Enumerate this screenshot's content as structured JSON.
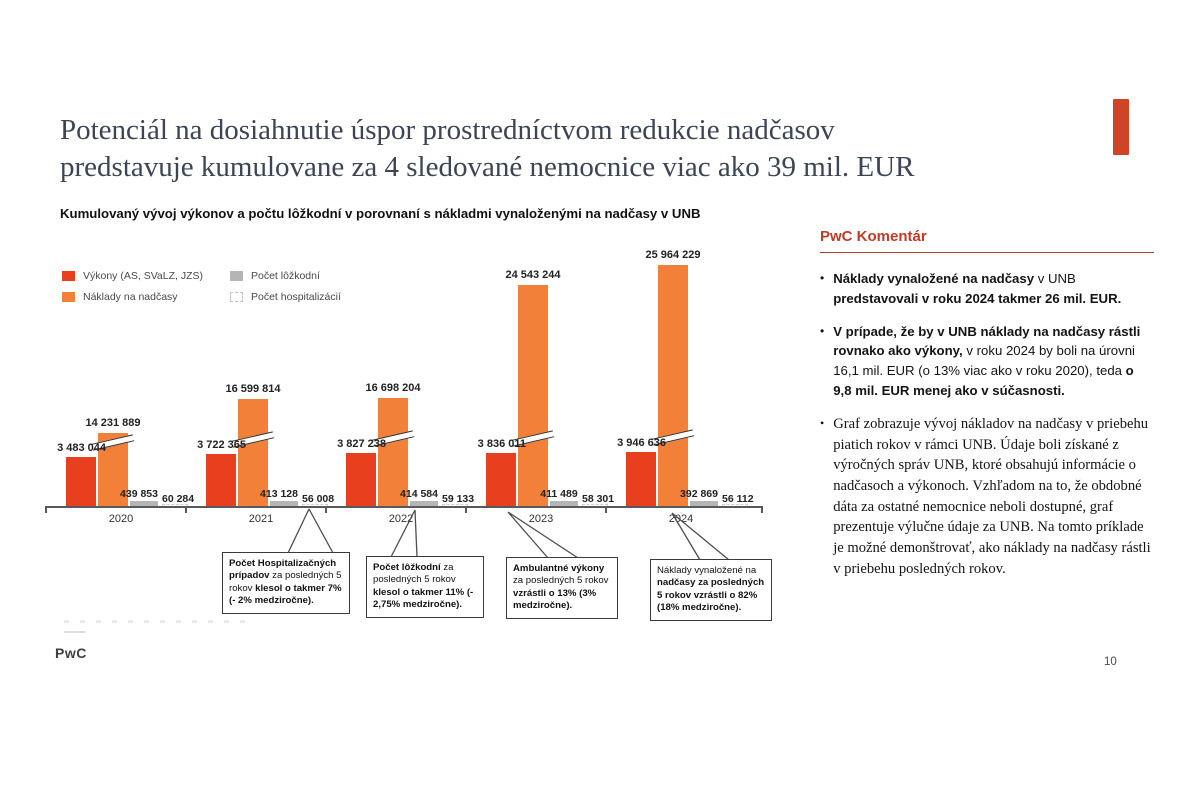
{
  "slide": {
    "title_line1": "Potenciál na dosiahnutie úspor prostredníctvom redukcie nadčasov",
    "title_line2": "predstavuje kumulovane za 4 sledované nemocnice viac ako 39 mil. EUR",
    "subtitle": "Kumulovaný vývoj výkonov a počtu lôžkodní v porovnaní s nákladmi vynaloženými na nadčasy v UNB",
    "footer_logo": "PwC",
    "page_number": "10",
    "accent_red_tab_color": "#cf4426"
  },
  "chart_data": {
    "type": "bar",
    "title": "Kumulovaný vývoj výkonov a počtu lôžkodní v porovnaní s nákladmi vynaloženými na nadčasy v UNB",
    "categories": [
      "2020",
      "2021",
      "2022",
      "2023",
      "2024"
    ],
    "series": [
      {
        "name": "Výkony (AS, SVaLZ, JZS)",
        "color": "#e8401f",
        "values": [
          3483044,
          3722365,
          3827238,
          3836011,
          3946636
        ]
      },
      {
        "name": "Náklady na nadčasy",
        "color": "#f28038",
        "values": [
          14231889,
          16599814,
          16698204,
          24543244,
          25964229
        ]
      },
      {
        "name": "Počet lôžkodní",
        "color": "#b3b5b7",
        "values": [
          439853,
          413128,
          414584,
          411489,
          392869
        ]
      },
      {
        "name": "Počet hospitalizácií",
        "color": "dashed",
        "values": [
          60284,
          56008,
          59133,
          58301,
          56112
        ]
      }
    ],
    "value_labels": true,
    "y_axis_visible": false,
    "axis_break_on_nadcasy_bars": true,
    "legend_position": "top-left"
  },
  "callouts": [
    {
      "runs": [
        {
          "t": "Počet Hospitalizačných prípadov",
          "b": 1
        },
        {
          "t": " za posledných 5 rokov ",
          "b": 0
        },
        {
          "t": "klesol o takmer 7% (- 2% medziročne).",
          "b": 1
        }
      ]
    },
    {
      "runs": [
        {
          "t": "Počet lôžkodní",
          "b": 1
        },
        {
          "t": " za posledných 5 rokov ",
          "b": 0
        },
        {
          "t": "klesol o takmer 11% (- 2,75% medziročne).",
          "b": 1
        }
      ]
    },
    {
      "runs": [
        {
          "t": "Ambulantné výkony",
          "b": 1
        },
        {
          "t": " za posledných 5 rokov ",
          "b": 0
        },
        {
          "t": "vzrástli o 13% (3% medziročne).",
          "b": 1
        }
      ]
    },
    {
      "runs": [
        {
          "t": "Náklady vynaložené na ",
          "b": 0
        },
        {
          "t": "nadčasy za posledných 5 rokov vzrástli o 82% (18% medziročne).",
          "b": 1
        }
      ]
    }
  ],
  "comment_panel": {
    "title": "PwC Komentár",
    "accent_color": "#c13b27",
    "bullets": [
      {
        "style": "sans",
        "runs": [
          {
            "t": "Náklady vynaložené na nadčasy",
            "b": 1
          },
          {
            "t": " v UNB ",
            "b": 0
          },
          {
            "t": "predstavovali v roku 2024 takmer 26 mil. EUR.",
            "b": 1
          }
        ]
      },
      {
        "style": "sans",
        "runs": [
          {
            "t": "V prípade, že by v UNB náklady na nadčasy rástli rovnako ako výkony,",
            "b": 1
          },
          {
            "t": " v roku 2024 by boli na úrovni 16,1 mil. EUR (o 13% viac ako v roku 2020), teda ",
            "b": 0
          },
          {
            "t": "o 9,8 mil. EUR menej ako v súčasnosti.",
            "b": 1
          }
        ]
      },
      {
        "style": "serif",
        "runs": [
          {
            "t": "Graf zobrazuje vývoj nákladov na nadčasy v priebehu piatich rokov v rámci UNB. Údaje boli získané z výročných správ UNB, ktoré obsahujú informácie o nadčasoch a výkonoch. Vzhľadom na to, že obdobné dáta za ostatné nemocnice neboli dostupné, graf prezentuje výlučne údaje za UNB. Na tomto príklade je možné demonštrovať, ako náklady na nadčasy rástli v priebehu posledných rokov.",
            "b": 0
          }
        ]
      }
    ]
  }
}
